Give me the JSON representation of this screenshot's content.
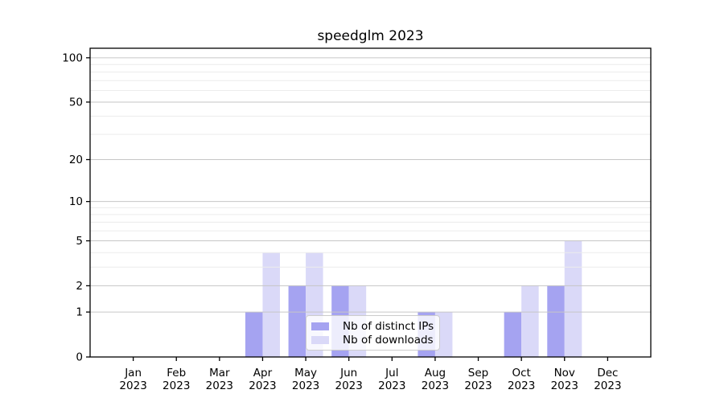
{
  "chart_data": {
    "type": "bar",
    "title": "speedglm 2023",
    "categories": [
      "Jan",
      "Feb",
      "Mar",
      "Apr",
      "May",
      "Jun",
      "Jul",
      "Aug",
      "Sep",
      "Oct",
      "Nov",
      "Dec"
    ],
    "year_label": "2023",
    "series": [
      {
        "name": "Nb of distinct IPs",
        "color": "#a5a3f1",
        "values": [
          0,
          0,
          0,
          1,
          2,
          2,
          0,
          1,
          0,
          1,
          2,
          0
        ]
      },
      {
        "name": "Nb of downloads",
        "color": "#dad9f8",
        "values": [
          0,
          0,
          0,
          4,
          4,
          2,
          0,
          1,
          0,
          2,
          5,
          0
        ]
      }
    ],
    "yscale": "log1p",
    "ylim": [
      0,
      116
    ],
    "yticks": [
      0,
      1,
      2,
      5,
      10,
      20,
      50,
      100
    ],
    "yticks_minor": [
      3,
      4,
      6,
      7,
      8,
      9,
      30,
      40,
      60,
      70,
      80,
      90
    ],
    "grid": "both",
    "legend_position": "lower center",
    "colors": {
      "major_grid": "#c6c6c6",
      "minor_grid": "#ececec",
      "spine": "#000000",
      "tick_text": "#000000"
    }
  }
}
